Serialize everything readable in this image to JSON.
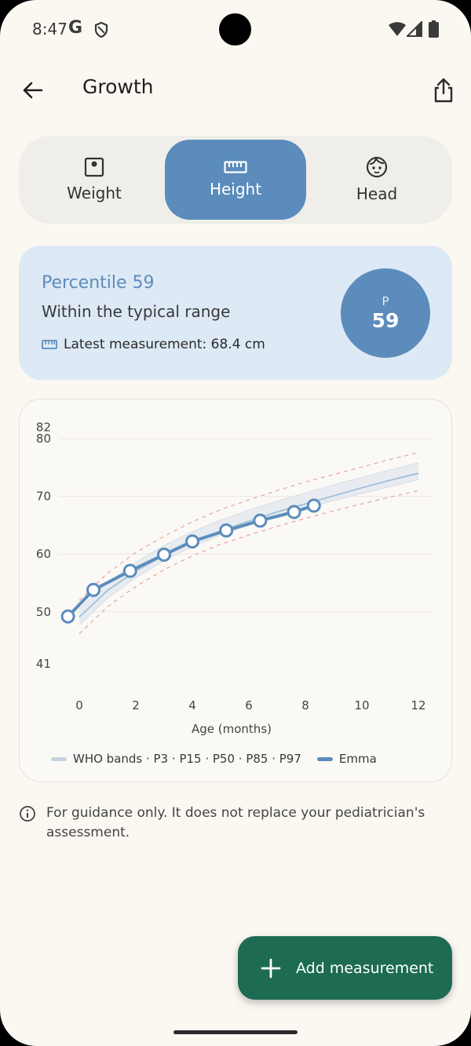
{
  "status_bar": {
    "time": "8:47",
    "g_label": "G",
    "icons": [
      "shield-icon",
      "wifi-icon",
      "signal-icon",
      "battery-icon"
    ]
  },
  "app_bar": {
    "title": "Growth",
    "back_icon": "arrow-back-icon",
    "share_icon": "share-icon"
  },
  "tabs": [
    {
      "label": "Weight",
      "icon": "scale-icon",
      "active": false
    },
    {
      "label": "Height",
      "icon": "ruler-icon",
      "active": true
    },
    {
      "label": "Head",
      "icon": "baby-face-icon",
      "active": false
    }
  ],
  "percentile_card": {
    "title": "Percentile 59",
    "subtitle": "Within the typical range",
    "latest": "Latest measurement: 68.4 cm",
    "badge_label": "P",
    "badge_value": "59"
  },
  "chart_data": {
    "type": "line",
    "xlabel": "Age (months)",
    "ylabel": "",
    "xlim": [
      0,
      12
    ],
    "ylim": [
      41,
      80
    ],
    "x_ticks": [
      "0",
      "2",
      "4",
      "6",
      "8",
      "10",
      "12"
    ],
    "y_ticks": [
      "41",
      "50",
      "60",
      "70",
      "80",
      "82"
    ],
    "legend": [
      "WHO bands · P3 · P15 · P50 · P85 · P97",
      "Emma"
    ],
    "bands_x": [
      0,
      1,
      2,
      3,
      4,
      5,
      6,
      7,
      8,
      9,
      10,
      11,
      12
    ],
    "p3": [
      46.2,
      50.9,
      54.4,
      57.3,
      59.7,
      61.7,
      63.3,
      64.8,
      66.2,
      67.5,
      68.7,
      69.9,
      71.0
    ],
    "p15": [
      47.7,
      52.4,
      55.9,
      58.9,
      61.3,
      63.3,
      65.0,
      66.5,
      67.9,
      69.3,
      70.5,
      71.7,
      72.9
    ],
    "p50": [
      49.1,
      53.7,
      57.1,
      59.8,
      62.1,
      64.0,
      65.7,
      67.3,
      68.7,
      70.1,
      71.5,
      72.8,
      74.0
    ],
    "p85": [
      50.5,
      55.1,
      58.6,
      61.5,
      63.9,
      65.9,
      67.6,
      69.2,
      70.6,
      72.0,
      73.3,
      74.6,
      75.8
    ],
    "p97": [
      52.0,
      56.7,
      60.3,
      63.1,
      65.6,
      67.7,
      69.4,
      71.0,
      72.5,
      73.8,
      75.1,
      76.4,
      77.6
    ],
    "series": [
      {
        "name": "Emma",
        "x": [
          -0.4,
          0.5,
          1.8,
          3.0,
          4.0,
          5.2,
          6.4,
          7.6,
          8.3
        ],
        "values": [
          49.2,
          53.8,
          57.1,
          59.9,
          62.2,
          64.1,
          65.8,
          67.3,
          68.4
        ]
      }
    ]
  },
  "disclaimer": "For guidance only. It does not replace your pediatrician's assessment.",
  "fab": {
    "label": "Add measurement",
    "icon": "plus-icon"
  },
  "colors": {
    "accent": "#5b8cbc",
    "fab": "#1d6b53",
    "card": "#dde9f5",
    "background": "#fbf8f2"
  }
}
